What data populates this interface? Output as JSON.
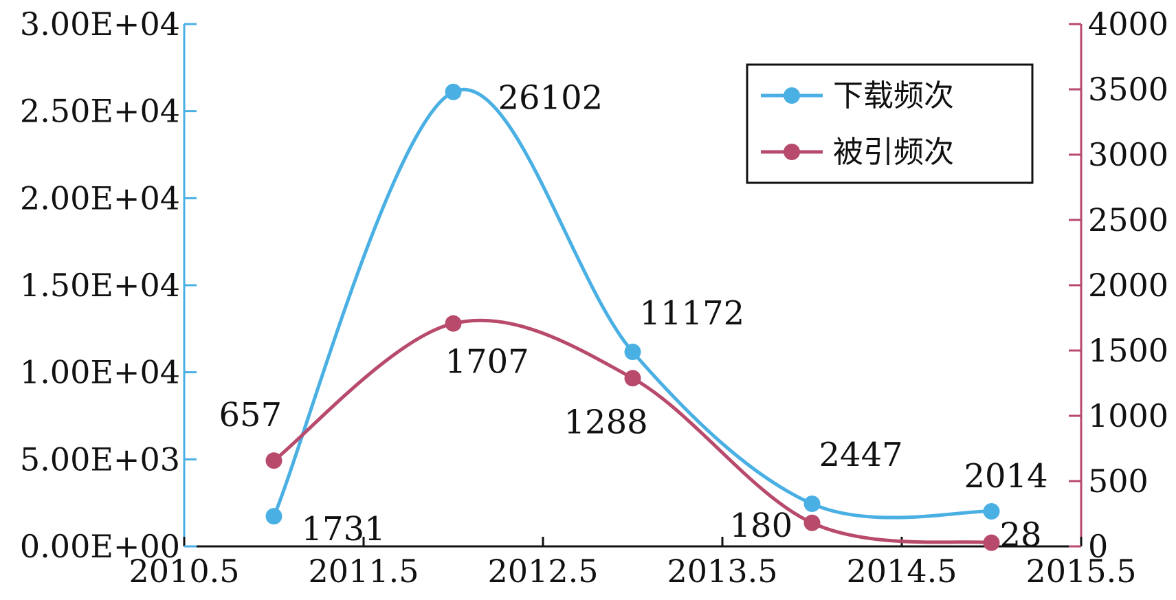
{
  "chart_data": {
    "type": "line",
    "x_axis": {
      "range": [
        2010.5,
        2015.5
      ],
      "ticks": [
        2010.5,
        2011.5,
        2012.5,
        2013.5,
        2014.5,
        2015.5
      ],
      "tick_labels": [
        "2010.5",
        "2011.5",
        "2012.5",
        "2013.5",
        "2014.5",
        "2015.5"
      ]
    },
    "y_left": {
      "range": [
        0,
        30000
      ],
      "ticks": [
        0,
        5000,
        10000,
        15000,
        20000,
        25000,
        30000
      ],
      "tick_labels": [
        "0.00E+00",
        "5.00E+03",
        "1.00E+04",
        "1.50E+04",
        "2.00E+04",
        "2.50E+04",
        "3.00E+04"
      ],
      "color": "#4ab0e4"
    },
    "y_right": {
      "range": [
        0,
        4000
      ],
      "ticks": [
        0,
        500,
        1000,
        1500,
        2000,
        2500,
        3000,
        3500,
        4000
      ],
      "tick_labels": [
        "0",
        "500",
        "1000",
        "1500",
        "2000",
        "2500",
        "3000",
        "3500",
        "4000"
      ],
      "color": "#b84a6c"
    },
    "grid": false,
    "legend_position": "top-right",
    "series": [
      {
        "name": "下载频次",
        "axis": "left",
        "color": "#4ab0e4",
        "x": [
          2011,
          2012,
          2013,
          2014,
          2015
        ],
        "values": [
          1731,
          26102,
          11172,
          2447,
          2014
        ],
        "labels": [
          "1731",
          "26102",
          "11172",
          "2447",
          "2014"
        ]
      },
      {
        "name": "被引频次",
        "axis": "right",
        "color": "#b84a6c",
        "x": [
          2011,
          2012,
          2013,
          2014,
          2015
        ],
        "values": [
          657,
          1707,
          1288,
          180,
          28
        ],
        "labels": [
          "657",
          "1707",
          "1288",
          "180",
          "28"
        ]
      }
    ]
  }
}
